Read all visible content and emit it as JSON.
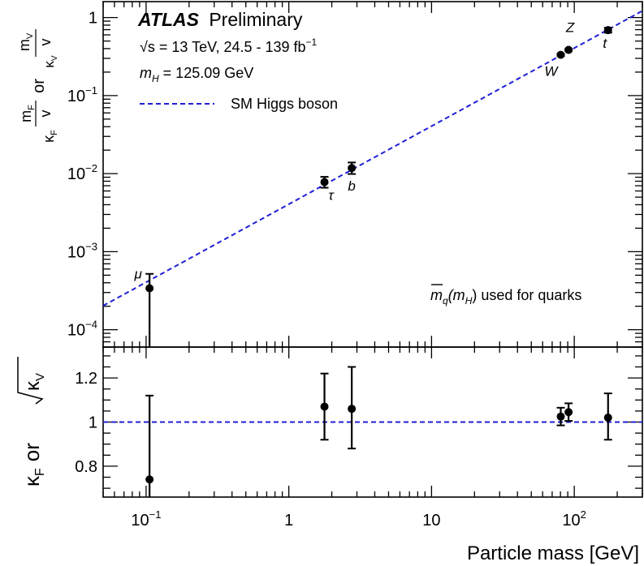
{
  "chart_data": {
    "type": "scatter",
    "x_axis": {
      "label": "Particle mass [GeV]",
      "scale": "log",
      "range": [
        0.05,
        300
      ],
      "ticks": [
        {
          "value": 0.1,
          "label": "10",
          "sup": "−1"
        },
        {
          "value": 1,
          "label": "1",
          "sup": ""
        },
        {
          "value": 10,
          "label": "10",
          "sup": ""
        },
        {
          "value": 100,
          "label": "10",
          "sup": "2"
        }
      ]
    },
    "top_panel": {
      "y_axis": {
        "scale": "log",
        "range": [
          6e-05,
          1.6
        ],
        "label": {
          "lhs_num": "m",
          "lhs_sub": "F",
          "lhs_den": "v",
          "lhs_kappa": "κ",
          "lhs_kappa_sub": "F",
          "mid": "or",
          "rhs_num": "m",
          "rhs_sub": "V",
          "rhs_kappa": "κ",
          "rhs_kappa_sub": "V",
          "rhs_den": "v"
        },
        "ticks": [
          {
            "value": 0.0001,
            "label": "10",
            "sup": "−4"
          },
          {
            "value": 0.001,
            "label": "10",
            "sup": "−3"
          },
          {
            "value": 0.01,
            "label": "10",
            "sup": "−2"
          },
          {
            "value": 0.1,
            "label": "10",
            "sup": "−1"
          },
          {
            "value": 1,
            "label": "1",
            "sup": ""
          }
        ]
      },
      "series": [
        {
          "marker": "circle",
          "color": "#000000",
          "points": [
            {
              "particle": "μ",
              "x": 0.1057,
              "y": 0.00034,
              "y_low": 3e-05,
              "y_high": 0.00052
            },
            {
              "particle": "τ",
              "x": 1.777,
              "y": 0.0078,
              "y_low": 0.0066,
              "y_high": 0.0091
            },
            {
              "particle": "b",
              "x": 2.76,
              "y": 0.0118,
              "y_low": 0.0099,
              "y_high": 0.0139
            },
            {
              "particle": "W",
              "x": 80.4,
              "y": 0.333,
              "y_low": 0.323,
              "y_high": 0.343
            },
            {
              "particle": "Z",
              "x": 91.19,
              "y": 0.385,
              "y_low": 0.375,
              "y_high": 0.395
            },
            {
              "particle": "t",
              "x": 172.5,
              "y": 0.69,
              "y_low": 0.64,
              "y_high": 0.74
            }
          ]
        }
      ],
      "reference_line": {
        "name": "SM Higgs boson",
        "style": "dashed",
        "color": "#1f1fd6",
        "vev": 246.22
      }
    },
    "bottom_panel": {
      "y_axis": {
        "range": [
          0.66,
          1.34
        ],
        "label": {
          "kappa": "κ",
          "kappa_sub": "F",
          "mid": "or",
          "kappa_v": "κ",
          "kappa_v_sub": "V"
        },
        "ticks": [
          {
            "value": 0.8,
            "label": "0.8"
          },
          {
            "value": 1.0,
            "label": "1"
          },
          {
            "value": 1.2,
            "label": "1.2"
          }
        ]
      },
      "points": [
        {
          "x": 0.1057,
          "y": 0.74,
          "y_low": 0.62,
          "y_high": 1.12
        },
        {
          "x": 1.777,
          "y": 1.07,
          "y_low": 0.92,
          "y_high": 1.22
        },
        {
          "x": 2.76,
          "y": 1.06,
          "y_low": 0.88,
          "y_high": 1.25
        },
        {
          "x": 80.4,
          "y": 1.025,
          "y_low": 0.985,
          "y_high": 1.065
        },
        {
          "x": 91.19,
          "y": 1.045,
          "y_low": 1.005,
          "y_high": 1.085
        },
        {
          "x": 172.5,
          "y": 1.02,
          "y_low": 0.92,
          "y_high": 1.13
        }
      ],
      "reference_value": 1.0
    },
    "annotations": {
      "experiment": "ATLAS",
      "status": "Preliminary",
      "energy_prefix": "√s = 13 TeV, 24.5 - 139 fb",
      "energy_sup": "−1",
      "mass_symbol": "m",
      "mass_sub": "H",
      "mass_value": " = 125.09 GeV",
      "legend_label": "SM Higgs boson",
      "quark_mass_note_symbol": "m",
      "quark_mass_note_sub": "q",
      "quark_mass_note_arg": "(m",
      "quark_mass_note_arg_sub": "H",
      "quark_mass_note_rest": ") used for quarks"
    }
  }
}
